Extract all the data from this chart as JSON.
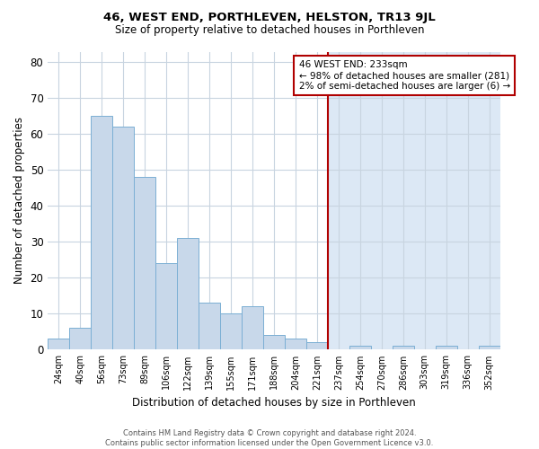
{
  "title": "46, WEST END, PORTHLEVEN, HELSTON, TR13 9JL",
  "subtitle": "Size of property relative to detached houses in Porthleven",
  "xlabel": "Distribution of detached houses by size in Porthleven",
  "ylabel": "Number of detached properties",
  "bins": [
    "24sqm",
    "40sqm",
    "56sqm",
    "73sqm",
    "89sqm",
    "106sqm",
    "122sqm",
    "139sqm",
    "155sqm",
    "171sqm",
    "188sqm",
    "204sqm",
    "221sqm",
    "237sqm",
    "254sqm",
    "270sqm",
    "286sqm",
    "303sqm",
    "319sqm",
    "336sqm",
    "352sqm"
  ],
  "values": [
    3,
    6,
    65,
    62,
    48,
    24,
    31,
    13,
    10,
    12,
    4,
    3,
    2,
    0,
    1,
    0,
    1,
    0,
    1,
    0,
    1
  ],
  "bar_color": "#c8d8ea",
  "bar_edge_color": "#7bafd4",
  "highlight_bg_color": "#dce8f5",
  "vline_color": "#b00000",
  "vline_x_index": 13,
  "annotation_title": "46 WEST END: 233sqm",
  "annotation_line1": "← 98% of detached houses are smaller (281)",
  "annotation_line2": "2% of semi-detached houses are larger (6) →",
  "annotation_box_edge_color": "#b00000",
  "ylim": [
    0,
    83
  ],
  "yticks": [
    0,
    10,
    20,
    30,
    40,
    50,
    60,
    70,
    80
  ],
  "footer_line1": "Contains HM Land Registry data © Crown copyright and database right 2024.",
  "footer_line2": "Contains public sector information licensed under the Open Government Licence v3.0."
}
